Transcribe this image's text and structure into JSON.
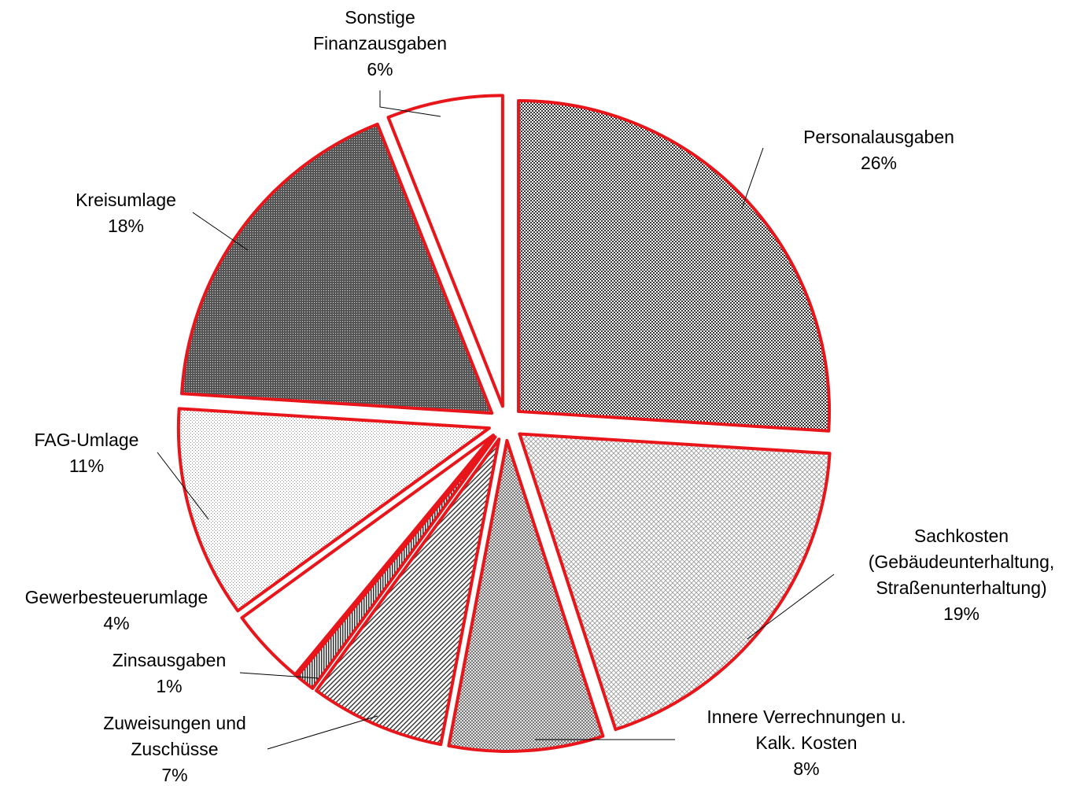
{
  "chart_data": {
    "type": "pie",
    "categories": [
      "Personalausgaben",
      "Sachkosten\n(Gebäudeunterhaltung,\nStraßenunterhaltung)",
      "Innere Verrechnungen u.\nKalk. Kosten",
      "Zuweisungen und\nZuschüsse",
      "Zinsausgaben",
      "Gewerbesteuerumlage",
      "FAG-Umlage",
      "Kreisumlage",
      "Sonstige\nFinanzausgaben"
    ],
    "values": [
      26,
      19,
      8,
      7,
      1,
      4,
      11,
      18,
      6
    ],
    "value_labels": [
      "26%",
      "19%",
      "8%",
      "7%",
      "1%",
      "4%",
      "11%",
      "18%",
      "6%"
    ],
    "colors": [
      "#6e6e6e",
      "#d4d4d4",
      "#a8a8a8",
      "#8c8c8c",
      "#555555",
      "#ffffff",
      "#e6e6e6",
      "#666666",
      "#ffffff"
    ],
    "edge_color": "#e8161b"
  }
}
